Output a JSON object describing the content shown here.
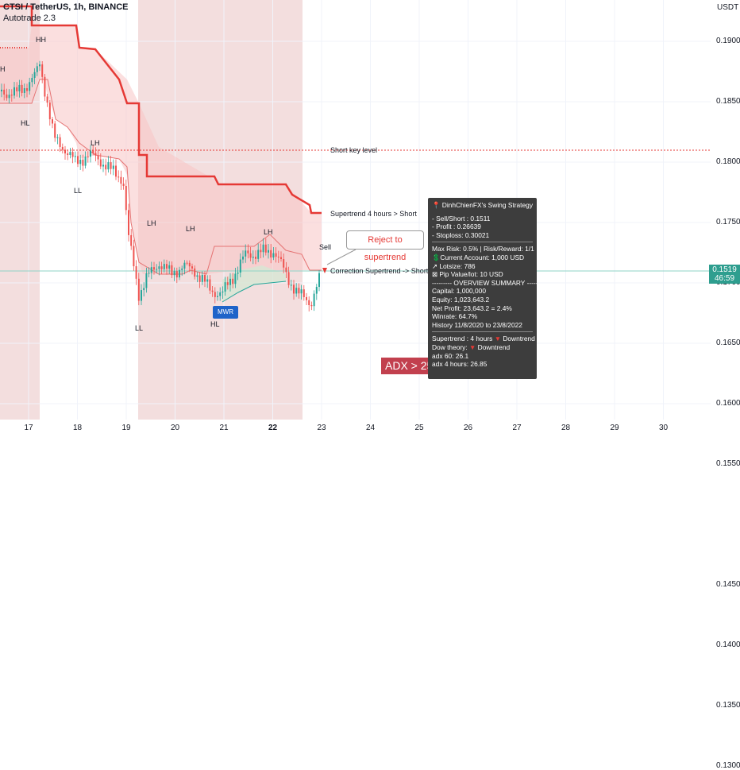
{
  "header": {
    "symbol_line": "CTSI / TetherUS, 1h, BINANCE",
    "indicator": "Autotrade 2.3"
  },
  "price_axis": {
    "unit": "USDT",
    "ticks": [
      "0.1900",
      "0.1850",
      "0.1800",
      "0.1750",
      "0.1700",
      "0.1650",
      "0.1600",
      "0.1550",
      "0.1450",
      "0.1400",
      "0.1350",
      "0.1300"
    ],
    "tick_values": [
      0.19,
      0.185,
      0.18,
      0.175,
      0.17,
      0.165,
      0.16,
      0.155,
      0.145,
      0.14,
      0.135,
      0.13
    ],
    "current_price": "0.1519",
    "countdown": "46:59"
  },
  "time_axis": {
    "ticks": [
      "17",
      "18",
      "19",
      "20",
      "21",
      "22",
      "23",
      "24",
      "25",
      "26",
      "27",
      "28",
      "29",
      "30"
    ],
    "tick_days": [
      17,
      18,
      19,
      20,
      21,
      22,
      23,
      24,
      25,
      26,
      27,
      28,
      29,
      30
    ],
    "bold": [
      "22"
    ]
  },
  "colors": {
    "supertrend": "#e53935",
    "key_level": "#e53935",
    "bull": "#26a69a",
    "bear": "#ef5350",
    "panel_bg": "#3d3d3d",
    "adx_bg": "#c2404e",
    "mwr_bg": "#1e63c9",
    "price_bg": "#2e9e8f"
  },
  "levels": {
    "short_key_level": 0.172,
    "correction_line": 0.152
  },
  "annotations": {
    "short_key_level": "Short key level",
    "supertrend_4h": "Supertrend 4 hours > Short",
    "correction": "Correction Supertrend -> Short",
    "sell": "Sell",
    "callout": "Reject to supertrend",
    "mwr": "MWR",
    "adx": "ADX > 25"
  },
  "swing_labels": [
    {
      "text": "HH"
    },
    {
      "text": "HL"
    },
    {
      "text": "LH"
    },
    {
      "text": "LL"
    },
    {
      "text": "LH"
    },
    {
      "text": "LL"
    },
    {
      "text": "LH"
    },
    {
      "text": "LH"
    },
    {
      "text": "HL"
    },
    {
      "text": "H"
    }
  ],
  "panel": {
    "title": "DinhChienFX's Swing Strategy",
    "trade": [
      "- Sell/Short    : 0.1511",
      "- Profit   : 0.26639",
      "- Stoploss: 0.30021"
    ],
    "risk": [
      "Max Risk: 0.5% | Risk/Reward: 1/1",
      "💲Current Account: 1,000 USD",
      "↗ Lotsize: 786",
      "⊠ Pip Value/lot: 10 USD",
      "--------- OVERVIEW SUMMARY ---------"
    ],
    "summary": [
      "Capital: 1,000,000",
      "Equity: 1,023,643.2",
      "Net Profit: 23,643.2 = 2.4%",
      "Winrate: 64.7%",
      "History 11/8/2020 to 23/8/2022"
    ],
    "trend": [
      {
        "text": "Supertrend : 4 hours",
        "mark": "▼",
        "suffix": "Downtrend"
      },
      {
        "text": "Dow theory:",
        "mark": "▼",
        "suffix": "Downtrend"
      }
    ],
    "adx": [
      "adx 60: 26.1",
      "adx 4 hours: 26.85"
    ]
  }
}
